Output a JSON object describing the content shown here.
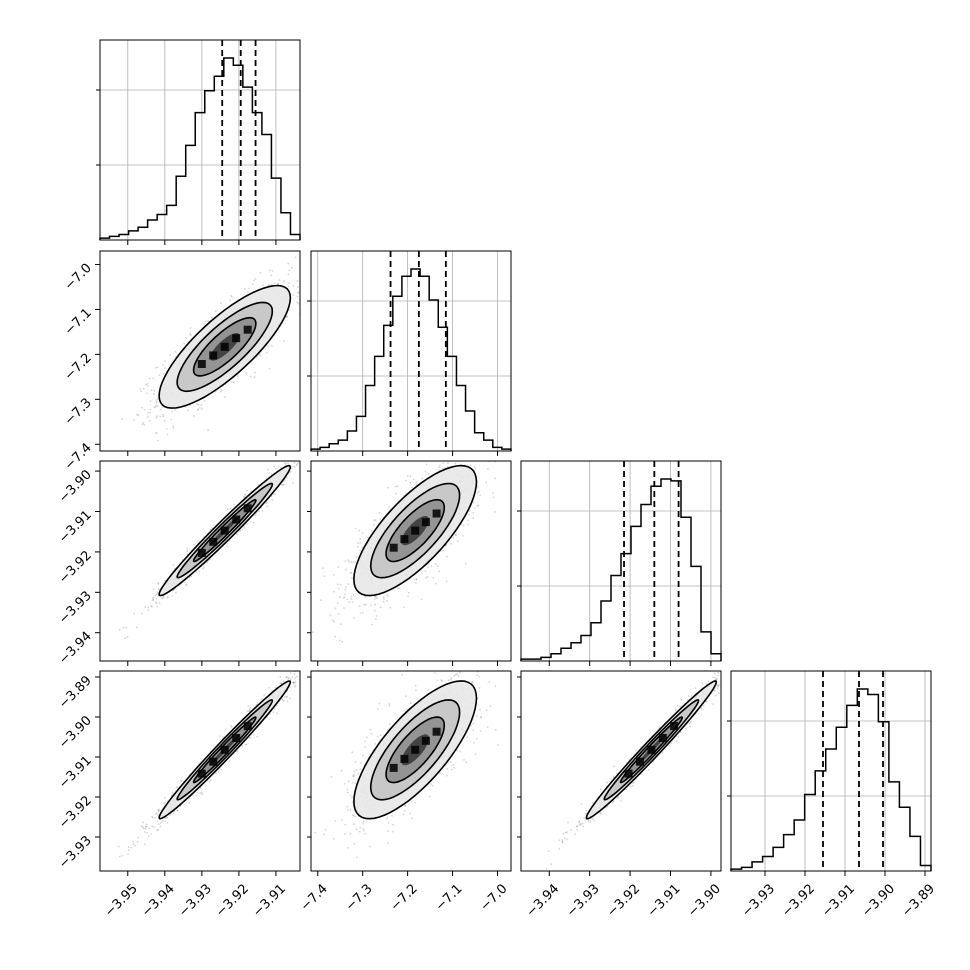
{
  "chart_data": {
    "type": "corner",
    "parameters": [
      {
        "range": [
          -3.9575,
          -3.9035
        ],
        "ticks": [
          {
            "v": -3.95,
            "label": "−3.95"
          },
          {
            "v": -3.94,
            "label": "−3.94"
          },
          {
            "v": -3.93,
            "label": "−3.93"
          },
          {
            "v": -3.92,
            "label": "−3.92"
          },
          {
            "v": -3.91,
            "label": "−3.91"
          }
        ],
        "quantiles": [
          -3.9245,
          -3.9195,
          -3.9155
        ]
      },
      {
        "range": [
          -7.415,
          -6.97
        ],
        "ticks": [
          {
            "v": -7.4,
            "label": "−7.4"
          },
          {
            "v": -7.3,
            "label": "−7.3"
          },
          {
            "v": -7.2,
            "label": "−7.2"
          },
          {
            "v": -7.1,
            "label": "−7.1"
          },
          {
            "v": -7.0,
            "label": "−7.0"
          }
        ],
        "quantiles": [
          -7.238,
          -7.175,
          -7.115
        ]
      },
      {
        "range": [
          -3.947,
          -3.8975
        ],
        "ticks": [
          {
            "v": -3.94,
            "label": "−3.94"
          },
          {
            "v": -3.93,
            "label": "−3.93"
          },
          {
            "v": -3.92,
            "label": "−3.92"
          },
          {
            "v": -3.91,
            "label": "−3.91"
          },
          {
            "v": -3.9,
            "label": "−3.90"
          }
        ],
        "quantiles": [
          -3.9215,
          -3.914,
          -3.908
        ]
      },
      {
        "range": [
          -3.9385,
          -3.8885
        ],
        "ticks": [
          {
            "v": -3.93,
            "label": "−3.93"
          },
          {
            "v": -3.92,
            "label": "−3.92"
          },
          {
            "v": -3.91,
            "label": "−3.91"
          },
          {
            "v": -3.9,
            "label": "−3.90"
          },
          {
            "v": -3.89,
            "label": "−3.89"
          }
        ],
        "yticks": [
          {
            "v": -3.89,
            "label": "−3.89"
          },
          {
            "v": -3.9,
            "label": "−3.90"
          },
          {
            "v": -3.91,
            "label": "−3.91"
          },
          {
            "v": -3.92,
            "label": "−3.92"
          },
          {
            "v": -3.93,
            "label": "−3.93"
          }
        ],
        "quantiles": [
          -3.9155,
          -3.9065,
          -3.9005
        ]
      }
    ],
    "histograms": [
      [
        1,
        2,
        3,
        5,
        7,
        11,
        14,
        19,
        35,
        52,
        70,
        82,
        90,
        100,
        96,
        84,
        70,
        58,
        34,
        15,
        3
      ],
      [
        1,
        2,
        4,
        6,
        11,
        19,
        36,
        52,
        69,
        85,
        96,
        100,
        96,
        83,
        68,
        52,
        36,
        22,
        10,
        6,
        2,
        1
      ],
      [
        1,
        1,
        2,
        4,
        7,
        10,
        14,
        21,
        33,
        47,
        59,
        74,
        86,
        96,
        100,
        99,
        79,
        52,
        16,
        4
      ],
      [
        1,
        2,
        5,
        8,
        13,
        20,
        28,
        42,
        55,
        67,
        79,
        91,
        100,
        97,
        82,
        49,
        35,
        19,
        3
      ]
    ],
    "correlations": {
      "1-0": 0.8,
      "2-0": 0.98,
      "2-1": 0.75,
      "3-0": 0.985,
      "3-1": 0.75,
      "3-2": 0.985
    },
    "grid": true,
    "colors": {
      "hist_line": "#000000",
      "scatter": "#444444",
      "grid": "#b0b0b0",
      "frame": "#000000"
    }
  }
}
